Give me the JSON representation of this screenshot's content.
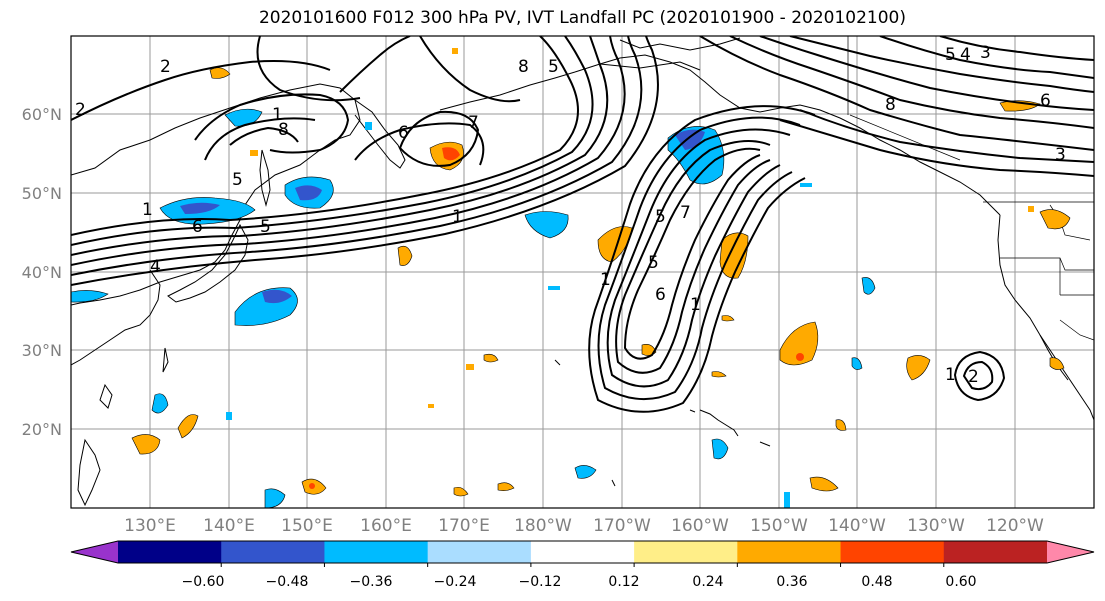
{
  "title": "2020101600 F012 300 hPa PV, IVT Landfall PC (2020101900 - 2020102100)",
  "lat_labels": [
    "60°N",
    "50°N",
    "40°N",
    "30°N",
    "20°N"
  ],
  "lon_labels": [
    "130°E",
    "140°E",
    "150°E",
    "160°E",
    "170°E",
    "180°W",
    "170°W",
    "160°W",
    "150°W",
    "140°W",
    "130°W",
    "120°W"
  ],
  "colorbar": {
    "colors": [
      "#9933cc",
      "#000088",
      "#3355cc",
      "#00bbff",
      "#aaddff",
      "#ffffff",
      "#ffee88",
      "#ffaa00",
      "#ff4400",
      "#bb2222",
      "#ff88aa"
    ],
    "ticks": [
      "−0.60",
      "−0.48",
      "−0.36",
      "−0.24",
      "−0.12",
      "0.12",
      "0.24",
      "0.36",
      "0.48",
      "0.60"
    ]
  },
  "pv_contour_labels": [
    "2",
    "2",
    "8",
    "8",
    "6",
    "5",
    "1",
    "1",
    "5",
    "7",
    "6",
    "5",
    "1",
    "4",
    "5",
    "7",
    "1",
    "5",
    "6",
    "1",
    "8",
    "6",
    "3",
    "5",
    "4",
    "3",
    "1",
    "2"
  ]
}
